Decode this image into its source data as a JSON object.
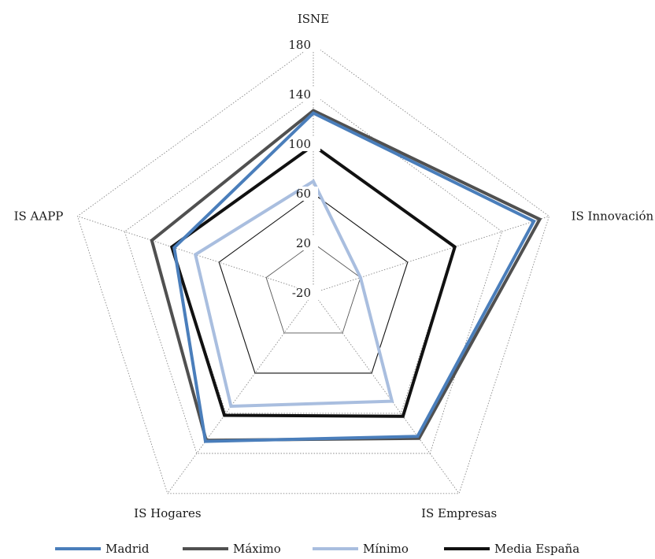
{
  "chart_data": {
    "type": "radar",
    "axes": [
      "ISNE",
      "IS Innovación",
      "IS Empresas",
      "IS Hogares",
      "IS AAPP"
    ],
    "ticks": [
      -20,
      20,
      60,
      100,
      140,
      180
    ],
    "tick_labels": [
      "-20",
      "20",
      "60",
      "100",
      "140",
      "180"
    ],
    "rlim": [
      -20,
      180
    ],
    "grid": true,
    "legend_position": "bottom",
    "series": [
      {
        "name": "Madrid",
        "color": "#4a7ebb",
        "values": [
          125,
          167,
          123,
          128,
          98
        ]
      },
      {
        "name": "Máximo",
        "color": "#505050",
        "values": [
          127,
          172,
          125,
          127,
          117
        ]
      },
      {
        "name": "Mínimo",
        "color": "#a9bedf",
        "values": [
          70,
          20,
          88,
          93,
          80
        ]
      },
      {
        "name": "Media España",
        "color": "#111111",
        "values": [
          99,
          100,
          103,
          102,
          100
        ]
      }
    ]
  }
}
